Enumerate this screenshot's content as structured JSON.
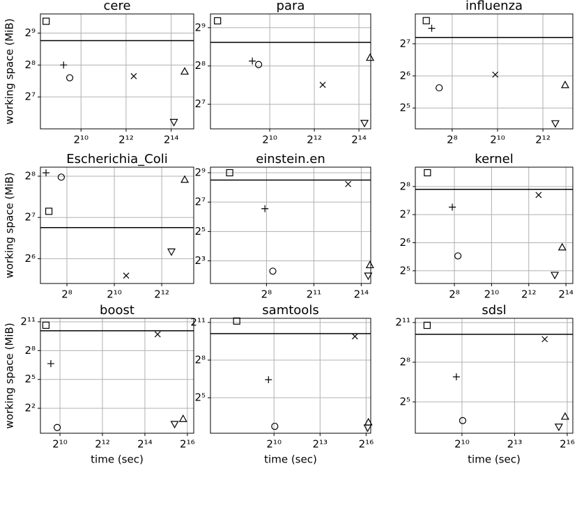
{
  "chart_data": [
    {
      "type": "scatter",
      "title": "cere",
      "ylabel": "working space (MiB)",
      "xscale": "log",
      "yscale": "log",
      "grid": true,
      "xlim": [
        294,
        32768
      ],
      "ylim": [
        64,
        776
      ],
      "xticks": [
        {
          "value": 1024,
          "label": "2¹⁰"
        },
        {
          "value": 4096,
          "label": "2¹²"
        },
        {
          "value": 16384,
          "label": "2¹⁴"
        }
      ],
      "yticks": [
        {
          "value": 128,
          "label": "2⁷"
        },
        {
          "value": 256,
          "label": "2⁸"
        },
        {
          "value": 512,
          "label": "2⁹"
        }
      ],
      "hline": 434,
      "hline_color": "#000000",
      "series": [
        {
          "marker": "square",
          "color": "#000000",
          "x": [
            350
          ],
          "values": [
            662
          ]
        },
        {
          "marker": "plus",
          "color": "#000000",
          "x": [
            600
          ],
          "values": [
            256
          ]
        },
        {
          "marker": "circle",
          "color": "#000000",
          "x": [
            724
          ],
          "values": [
            194
          ]
        },
        {
          "marker": "x",
          "color": "#000000",
          "x": [
            5180
          ],
          "values": [
            201
          ]
        },
        {
          "marker": "triangle-down",
          "color": "#000000",
          "x": [
            17800
          ],
          "values": [
            74
          ]
        },
        {
          "marker": "triangle-up",
          "color": "#000000",
          "x": [
            24800
          ],
          "values": [
            223
          ]
        }
      ]
    },
    {
      "type": "scatter",
      "title": "para",
      "xscale": "log",
      "yscale": "log",
      "grid": true,
      "xlim": [
        162,
        23650
      ],
      "ylim": [
        82,
        657
      ],
      "xticks": [
        {
          "value": 1024,
          "label": "2¹⁰"
        },
        {
          "value": 4096,
          "label": "2¹²"
        },
        {
          "value": 16384,
          "label": "2¹⁴"
        }
      ],
      "yticks": [
        {
          "value": 128,
          "label": "2⁷"
        },
        {
          "value": 256,
          "label": "2⁸"
        },
        {
          "value": 512,
          "label": "2⁹"
        }
      ],
      "hline": 393,
      "hline_color": "#000000",
      "series": [
        {
          "marker": "square",
          "color": "#000000",
          "x": [
            202
          ],
          "values": [
            580
          ]
        },
        {
          "marker": "plus",
          "color": "#000000",
          "x": [
            596
          ],
          "values": [
            280
          ]
        },
        {
          "marker": "circle",
          "color": "#000000",
          "x": [
            724
          ],
          "values": [
            263
          ]
        },
        {
          "marker": "x",
          "color": "#000000",
          "x": [
            5310
          ],
          "values": [
            182
          ]
        },
        {
          "marker": "triangle-down",
          "color": "#000000",
          "x": [
            19480
          ],
          "values": [
            91
          ]
        },
        {
          "marker": "triangle-up",
          "color": "#000000",
          "x": [
            23170
          ],
          "values": [
            298
          ]
        }
      ]
    },
    {
      "type": "scatter",
      "title": "influenza",
      "xscale": "log",
      "yscale": "log",
      "grid": true,
      "xlim": [
        83,
        10220
      ],
      "ylim": [
        20.4,
        244
      ],
      "xticks": [
        {
          "value": 256,
          "label": "2⁸"
        },
        {
          "value": 1024,
          "label": "2¹⁰"
        },
        {
          "value": 4096,
          "label": "2¹²"
        }
      ],
      "yticks": [
        {
          "value": 32,
          "label": "2⁵"
        },
        {
          "value": 64,
          "label": "2⁶"
        },
        {
          "value": 128,
          "label": "2⁷"
        }
      ],
      "hline": 147,
      "hline_color": "#000000",
      "series": [
        {
          "marker": "square",
          "color": "#000000",
          "x": [
            116
          ],
          "values": [
            211
          ]
        },
        {
          "marker": "plus",
          "color": "#000000",
          "x": [
            137
          ],
          "values": [
            179
          ]
        },
        {
          "marker": "circle",
          "color": "#000000",
          "x": [
            172
          ],
          "values": [
            49.5
          ]
        },
        {
          "marker": "x",
          "color": "#000000",
          "x": [
            955
          ],
          "values": [
            65.8
          ]
        },
        {
          "marker": "triangle-down",
          "color": "#000000",
          "x": [
            5990
          ],
          "values": [
            22.9
          ]
        },
        {
          "marker": "triangle-up",
          "color": "#000000",
          "x": [
            8080
          ],
          "values": [
            52.7
          ]
        }
      ]
    },
    {
      "type": "scatter",
      "title": "Escherichia_Coli",
      "ylabel": "working space (MiB)",
      "xscale": "log",
      "yscale": "log",
      "grid": true,
      "xlim": [
        118,
        10440
      ],
      "ylim": [
        42.2,
        298
      ],
      "xticks": [
        {
          "value": 256,
          "label": "2⁸"
        },
        {
          "value": 1024,
          "label": "2¹⁰"
        },
        {
          "value": 4096,
          "label": "2¹²"
        }
      ],
      "yticks": [
        {
          "value": 64,
          "label": "2⁶"
        },
        {
          "value": 128,
          "label": "2⁷"
        },
        {
          "value": 256,
          "label": "2⁸"
        }
      ],
      "hline": 108,
      "hline_color": "#000000",
      "series": [
        {
          "marker": "square",
          "color": "#000000",
          "x": [
            151
          ],
          "values": [
            142
          ]
        },
        {
          "marker": "plus",
          "color": "#000000",
          "x": [
            139
          ],
          "values": [
            271
          ]
        },
        {
          "marker": "circle",
          "color": "#000000",
          "x": [
            217
          ],
          "values": [
            252
          ]
        },
        {
          "marker": "x",
          "color": "#000000",
          "x": [
            1448
          ],
          "values": [
            48.2
          ]
        },
        {
          "marker": "triangle-down",
          "color": "#000000",
          "x": [
            5440
          ],
          "values": [
            72
          ]
        },
        {
          "marker": "triangle-up",
          "color": "#000000",
          "x": [
            8020
          ],
          "values": [
            242
          ]
        }
      ]
    },
    {
      "type": "scatter",
      "title": "einstein.en",
      "xscale": "log",
      "yscale": "log",
      "grid": true,
      "xlim": [
        21.9,
        24830
      ],
      "ylim": [
        2.75,
        666
      ],
      "xticks": [
        {
          "value": 256,
          "label": "2⁸"
        },
        {
          "value": 2048,
          "label": "2¹¹"
        },
        {
          "value": 16384,
          "label": "2¹⁴"
        }
      ],
      "yticks": [
        {
          "value": 8,
          "label": "2³"
        },
        {
          "value": 32,
          "label": "2⁵"
        },
        {
          "value": 128,
          "label": "2⁷"
        },
        {
          "value": 512,
          "label": "2⁹"
        }
      ],
      "hline": 362,
      "hline_color": "#000000",
      "series": [
        {
          "marker": "square",
          "color": "#000000",
          "x": [
            50.9
          ],
          "values": [
            512
          ]
        },
        {
          "marker": "plus",
          "color": "#000000",
          "x": [
            239
          ],
          "values": [
            93.7
          ]
        },
        {
          "marker": "circle",
          "color": "#000000",
          "x": [
            338
          ],
          "values": [
            4.92
          ]
        },
        {
          "marker": "x",
          "color": "#000000",
          "x": [
            9220
          ],
          "values": [
            300
          ]
        },
        {
          "marker": "triangle-down",
          "color": "#000000",
          "x": [
            22230
          ],
          "values": [
            3.95
          ]
        },
        {
          "marker": "triangle-up",
          "color": "#000000",
          "x": [
            23980
          ],
          "values": [
            6.59
          ]
        }
      ]
    },
    {
      "type": "scatter",
      "title": "kernel",
      "xscale": "log",
      "yscale": "log",
      "grid": true,
      "xlim": [
        59.7,
        21180
      ],
      "ylim": [
        23.4,
        413
      ],
      "xticks": [
        {
          "value": 256,
          "label": "2⁸"
        },
        {
          "value": 1024,
          "label": "2¹⁰"
        },
        {
          "value": 4096,
          "label": "2¹²"
        },
        {
          "value": 16384,
          "label": "2¹⁴"
        }
      ],
      "yticks": [
        {
          "value": 32,
          "label": "2⁵"
        },
        {
          "value": 64,
          "label": "2⁶"
        },
        {
          "value": 128,
          "label": "2⁷"
        },
        {
          "value": 256,
          "label": "2⁸"
        }
      ],
      "hline": 239,
      "hline_color": "#000000",
      "series": [
        {
          "marker": "square",
          "color": "#000000",
          "x": [
            93.7
          ],
          "values": [
            360
          ]
        },
        {
          "marker": "plus",
          "color": "#000000",
          "x": [
            237
          ],
          "values": [
            154
          ]
        },
        {
          "marker": "circle",
          "color": "#000000",
          "x": [
            292
          ],
          "values": [
            46.2
          ]
        },
        {
          "marker": "x",
          "color": "#000000",
          "x": [
            5910
          ],
          "values": [
            208
          ]
        },
        {
          "marker": "triangle-down",
          "color": "#000000",
          "x": [
            10810
          ],
          "values": [
            28.8
          ]
        },
        {
          "marker": "triangle-up",
          "color": "#000000",
          "x": [
            14260
          ],
          "values": [
            57.3
          ]
        }
      ]
    },
    {
      "type": "scatter",
      "title": "boost",
      "xlabel": "time (sec)",
      "ylabel": "working space (MiB)",
      "xscale": "log",
      "yscale": "log",
      "grid": true,
      "xlim": [
        541,
        80700
      ],
      "ylim": [
        0.66,
        2628
      ],
      "xticks": [
        {
          "value": 1024,
          "label": "2¹⁰"
        },
        {
          "value": 4096,
          "label": "2¹²"
        },
        {
          "value": 16384,
          "label": "2¹⁴"
        },
        {
          "value": 65536,
          "label": "2¹⁶"
        }
      ],
      "yticks": [
        {
          "value": 4,
          "label": "2²"
        },
        {
          "value": 32,
          "label": "2⁵"
        },
        {
          "value": 256,
          "label": "2⁸"
        },
        {
          "value": 2048,
          "label": "2¹¹"
        }
      ],
      "hline": 1068,
      "hline_color": "#000000",
      "series": [
        {
          "marker": "square",
          "color": "#000000",
          "x": [
            648
          ],
          "values": [
            1596
          ]
        },
        {
          "marker": "plus",
          "color": "#000000",
          "x": [
            760
          ],
          "values": [
            100
          ]
        },
        {
          "marker": "circle",
          "color": "#000000",
          "x": [
            936
          ],
          "values": [
            1.0
          ]
        },
        {
          "marker": "x",
          "color": "#000000",
          "x": [
            24830
          ],
          "values": [
            832
          ]
        },
        {
          "marker": "triangle-down",
          "color": "#000000",
          "x": [
            43240
          ],
          "values": [
            1.27
          ]
        },
        {
          "marker": "triangle-up",
          "color": "#000000",
          "x": [
            57060
          ],
          "values": [
            1.87
          ]
        }
      ]
    },
    {
      "type": "scatter",
      "title": "samtools",
      "xlabel": "time (sec)",
      "xscale": "log",
      "yscale": "log",
      "grid": true,
      "xlim": [
        58.1,
        80700
      ],
      "ylim": [
        4.5,
        2574
      ],
      "xticks": [
        {
          "value": 1024,
          "label": "2¹⁰"
        },
        {
          "value": 8192,
          "label": "2¹³"
        },
        {
          "value": 65536,
          "label": "2¹⁶"
        }
      ],
      "yticks": [
        {
          "value": 32,
          "label": "2⁵"
        },
        {
          "value": 256,
          "label": "2⁸"
        },
        {
          "value": 2048,
          "label": "2¹¹"
        }
      ],
      "hline": 1105,
      "hline_color": "#000000",
      "series": [
        {
          "marker": "square",
          "color": "#000000",
          "x": [
            190
          ],
          "values": [
            2210
          ]
        },
        {
          "marker": "plus",
          "color": "#000000",
          "x": [
            798
          ],
          "values": [
            86.8
          ]
        },
        {
          "marker": "circle",
          "color": "#000000",
          "x": [
            1060
          ],
          "values": [
            6.59
          ]
        },
        {
          "marker": "x",
          "color": "#000000",
          "x": [
            39510
          ],
          "values": [
            949
          ]
        },
        {
          "marker": "triangle-down",
          "color": "#000000",
          "x": [
            70240
          ],
          "values": [
            6.06
          ]
        },
        {
          "marker": "triangle-up",
          "color": "#000000",
          "x": [
            72700
          ],
          "values": [
            8.28
          ]
        }
      ]
    },
    {
      "type": "scatter",
      "title": "sdsl",
      "xlabel": "time (sec)",
      "xscale": "log",
      "yscale": "log",
      "grid": true,
      "xlim": [
        162,
        81830
      ],
      "ylim": [
        6.19,
        2556
      ],
      "xticks": [
        {
          "value": 1024,
          "label": "2¹⁰"
        },
        {
          "value": 8192,
          "label": "2¹³"
        },
        {
          "value": 65536,
          "label": "2¹⁶"
        }
      ],
      "yticks": [
        {
          "value": 32,
          "label": "2⁵"
        },
        {
          "value": 256,
          "label": "2⁸"
        },
        {
          "value": 2048,
          "label": "2¹¹"
        }
      ],
      "hline": 1105,
      "hline_color": "#000000",
      "series": [
        {
          "marker": "square",
          "color": "#000000",
          "x": [
            258
          ],
          "values": [
            1771
          ]
        },
        {
          "marker": "plus",
          "color": "#000000",
          "x": [
            820
          ],
          "values": [
            119
          ]
        },
        {
          "marker": "circle",
          "color": "#000000",
          "x": [
            1053
          ],
          "values": [
            12
          ]
        },
        {
          "marker": "x",
          "color": "#000000",
          "x": [
            26980
          ],
          "values": [
            855
          ]
        },
        {
          "marker": "triangle-down",
          "color": "#000000",
          "x": [
            46990
          ],
          "values": [
            8.63
          ]
        },
        {
          "marker": "triangle-up",
          "color": "#000000",
          "x": [
            60300
          ],
          "values": [
            14.9
          ]
        }
      ]
    }
  ]
}
